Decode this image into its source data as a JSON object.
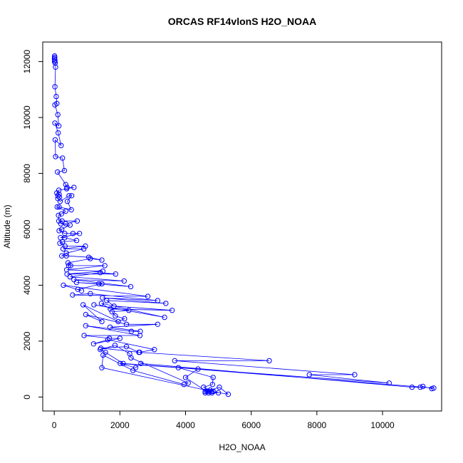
{
  "chart_data": {
    "type": "line",
    "title": "ORCAS RF14vlonS H2O_NOAA",
    "xlabel": "H2O_NOAA",
    "ylabel": "Altitude (m)",
    "xlim": [
      -350,
      11800
    ],
    "ylim": [
      -500,
      12700
    ],
    "xticks": [
      0,
      2000,
      4000,
      6000,
      8000,
      10000
    ],
    "yticks": [
      0,
      2000,
      4000,
      6000,
      8000,
      10000,
      12000
    ],
    "grid": false,
    "legend": "none",
    "marker": "open-circle",
    "color": "#0000ff",
    "series": [
      {
        "points": [
          [
            10,
            12200
          ],
          [
            15,
            12150
          ],
          [
            5,
            12100
          ],
          [
            20,
            12050
          ],
          [
            10,
            12000
          ],
          [
            30,
            11950
          ],
          [
            40,
            11800
          ],
          [
            20,
            11100
          ],
          [
            60,
            10750
          ],
          [
            80,
            10500
          ],
          [
            20,
            10450
          ],
          [
            110,
            10100
          ],
          [
            140,
            9700
          ],
          [
            20,
            9800
          ],
          [
            120,
            9450
          ],
          [
            210,
            9000
          ],
          [
            30,
            9200
          ],
          [
            40,
            8600
          ],
          [
            250,
            8550
          ],
          [
            310,
            8100
          ],
          [
            100,
            8050
          ],
          [
            350,
            7600
          ],
          [
            390,
            7500
          ],
          [
            600,
            7500
          ],
          [
            380,
            7450
          ],
          [
            140,
            7400
          ],
          [
            80,
            7300
          ],
          [
            150,
            7250
          ],
          [
            110,
            7200
          ],
          [
            160,
            7150
          ],
          [
            110,
            7100
          ],
          [
            180,
            7000
          ],
          [
            450,
            7200
          ],
          [
            530,
            7200
          ],
          [
            400,
            7000
          ],
          [
            520,
            6700
          ],
          [
            150,
            6800
          ],
          [
            90,
            6800
          ],
          [
            350,
            6650
          ],
          [
            220,
            6550
          ],
          [
            130,
            6500
          ],
          [
            140,
            6300
          ],
          [
            240,
            6300
          ],
          [
            700,
            6300
          ],
          [
            350,
            6200
          ],
          [
            200,
            6200
          ],
          [
            480,
            6150
          ],
          [
            230,
            6000
          ],
          [
            150,
            5950
          ],
          [
            320,
            5850
          ],
          [
            570,
            5850
          ],
          [
            770,
            5850
          ],
          [
            190,
            5700
          ],
          [
            320,
            5700
          ],
          [
            680,
            5600
          ],
          [
            250,
            5550
          ],
          [
            170,
            5500
          ],
          [
            330,
            5400
          ],
          [
            950,
            5400
          ],
          [
            270,
            5300
          ],
          [
            900,
            5300
          ],
          [
            370,
            5150
          ],
          [
            230,
            5050
          ],
          [
            370,
            5050
          ],
          [
            1050,
            5000
          ],
          [
            1450,
            4900
          ],
          [
            1100,
            4950
          ],
          [
            420,
            4800
          ],
          [
            440,
            4700
          ],
          [
            500,
            4700
          ],
          [
            1540,
            4700
          ],
          [
            380,
            4550
          ],
          [
            1480,
            4500
          ],
          [
            390,
            4400
          ],
          [
            1870,
            4400
          ],
          [
            1400,
            4450
          ],
          [
            480,
            4300
          ],
          [
            2130,
            4150
          ],
          [
            600,
            4200
          ],
          [
            2330,
            3950
          ],
          [
            680,
            4100
          ],
          [
            1360,
            4050
          ],
          [
            1450,
            4050
          ],
          [
            720,
            3850
          ],
          [
            830,
            3800
          ],
          [
            280,
            4000
          ],
          [
            2850,
            3600
          ],
          [
            560,
            3650
          ],
          [
            1100,
            3700
          ],
          [
            3150,
            3450
          ],
          [
            1470,
            3550
          ],
          [
            3400,
            3350
          ],
          [
            1600,
            3450
          ],
          [
            1820,
            3250
          ],
          [
            3590,
            3100
          ],
          [
            1710,
            3150
          ],
          [
            1440,
            3350
          ],
          [
            3360,
            2850
          ],
          [
            1210,
            3300
          ],
          [
            2270,
            3100
          ],
          [
            1760,
            3050
          ],
          [
            1860,
            2900
          ],
          [
            2140,
            2800
          ],
          [
            1950,
            2700
          ],
          [
            880,
            3300
          ],
          [
            1450,
            2700
          ],
          [
            960,
            2950
          ],
          [
            2200,
            2600
          ],
          [
            3150,
            2600
          ],
          [
            1700,
            2500
          ],
          [
            2620,
            2350
          ],
          [
            2350,
            2350
          ],
          [
            960,
            2550
          ],
          [
            2610,
            2200
          ],
          [
            910,
            2200
          ],
          [
            1680,
            2100
          ],
          [
            2000,
            2100
          ],
          [
            1200,
            1900
          ],
          [
            1630,
            2050
          ],
          [
            3050,
            1700
          ],
          [
            2600,
            1600
          ],
          [
            1420,
            1750
          ],
          [
            2200,
            1800
          ],
          [
            2580,
            1600
          ],
          [
            6550,
            1300
          ],
          [
            3670,
            1300
          ],
          [
            9150,
            800
          ],
          [
            7770,
            800
          ],
          [
            10200,
            500
          ],
          [
            2010,
            1200
          ],
          [
            2480,
            1050
          ],
          [
            2640,
            1200
          ],
          [
            10900,
            350
          ],
          [
            11150,
            350
          ],
          [
            11230,
            380
          ],
          [
            11500,
            300
          ],
          [
            11560,
            320
          ],
          [
            3780,
            1050
          ],
          [
            4840,
            700
          ],
          [
            4820,
            450
          ],
          [
            4550,
            350
          ],
          [
            4750,
            250
          ],
          [
            5030,
            350
          ],
          [
            5300,
            100
          ],
          [
            4800,
            200
          ],
          [
            4700,
            200
          ],
          [
            4850,
            200
          ],
          [
            4800,
            200
          ],
          [
            4600,
            200
          ],
          [
            4700,
            150
          ],
          [
            4000,
            700
          ],
          [
            4380,
            1000
          ],
          [
            2100,
            1200
          ],
          [
            1560,
            1600
          ],
          [
            1400,
            1700
          ],
          [
            1850,
            1850
          ],
          [
            2300,
            1550
          ],
          [
            2340,
            1400
          ],
          [
            4080,
            500
          ],
          [
            3950,
            450
          ],
          [
            2400,
            950
          ],
          [
            1490,
            1500
          ],
          [
            1450,
            1050
          ],
          [
            5000,
            150
          ],
          [
            4800,
            150
          ],
          [
            4650,
            200
          ],
          [
            4600,
            150
          ]
        ]
      }
    ]
  }
}
